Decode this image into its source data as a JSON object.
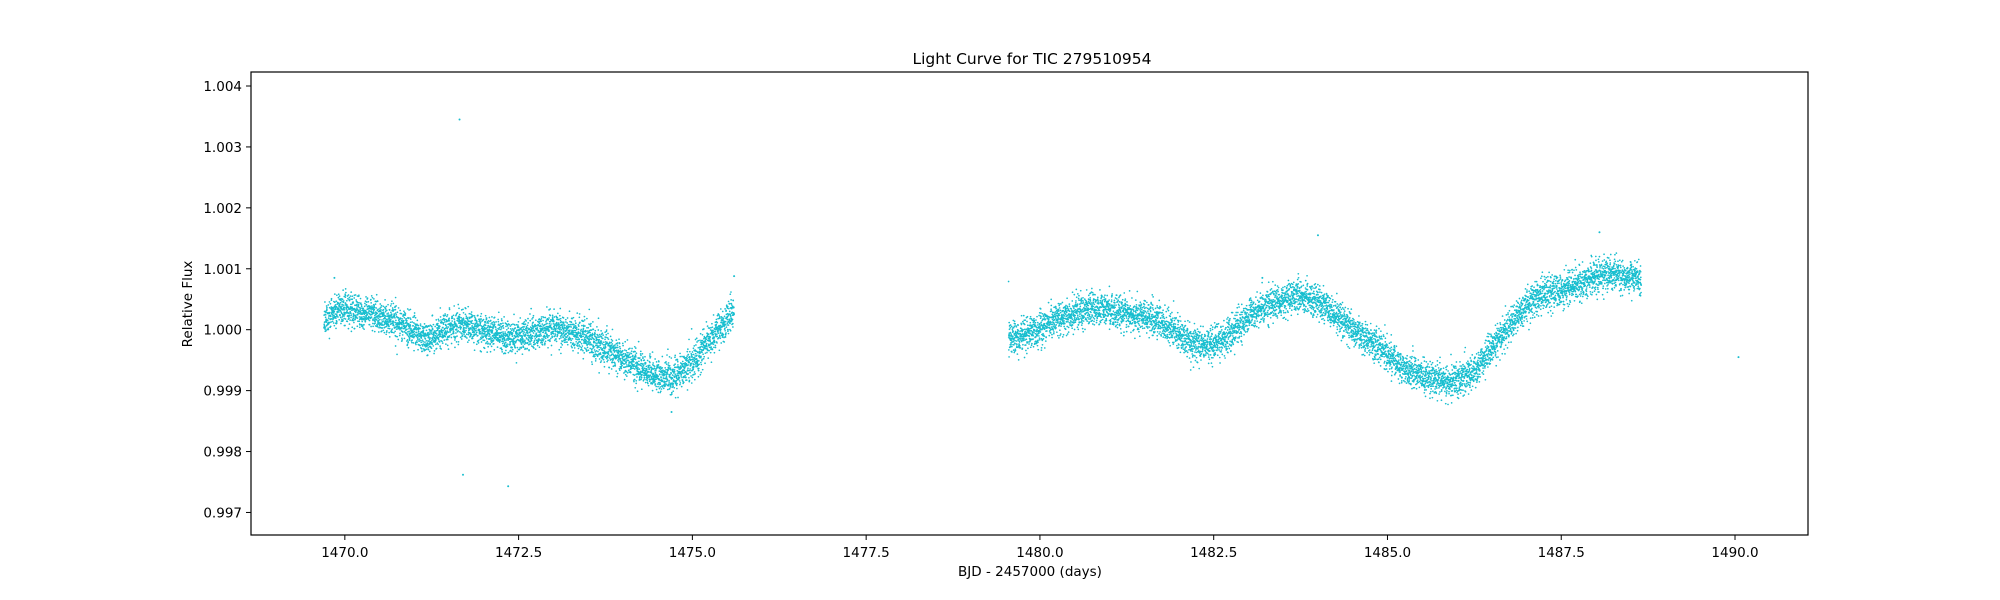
{
  "chart_data": {
    "type": "scatter",
    "title": "Light Curve for TIC 279510954",
    "xlabel": "BJD - 2457000 (days)",
    "ylabel": "Relative Flux",
    "xlim": [
      1468.65,
      1491.05
    ],
    "ylim": [
      0.99663,
      1.00423
    ],
    "xticks": [
      1470.0,
      1472.5,
      1475.0,
      1477.5,
      1480.0,
      1482.5,
      1485.0,
      1487.5,
      1490.0
    ],
    "xtick_labels": [
      "1470.0",
      "1472.5",
      "1475.0",
      "1477.5",
      "1480.0",
      "1482.5",
      "1485.0",
      "1487.5",
      "1490.0"
    ],
    "yticks": [
      0.997,
      0.998,
      0.999,
      1.0,
      1.001,
      1.002,
      1.003,
      1.004
    ],
    "ytick_labels": [
      "0.997",
      "0.998",
      "0.999",
      "1.000",
      "1.001",
      "1.002",
      "1.003",
      "1.004"
    ],
    "grid": false,
    "marker_color": "#17becf",
    "series": [
      {
        "segments": [
          {
            "x": [
              1469.7,
              1469.85,
              1470.0,
              1470.2,
              1470.4,
              1470.6,
              1470.8,
              1471.0,
              1471.15,
              1471.3,
              1471.5,
              1471.7,
              1471.9,
              1472.1,
              1472.3,
              1472.5,
              1472.7,
              1472.9,
              1473.1,
              1473.3,
              1473.5,
              1473.7,
              1473.9,
              1474.1,
              1474.3,
              1474.5,
              1474.7,
              1474.9,
              1475.1,
              1475.3,
              1475.45,
              1475.6
            ],
            "y": [
              1.00015,
              1.0003,
              1.00035,
              1.0003,
              1.00025,
              1.0002,
              1.0001,
              0.99995,
              0.99985,
              0.9999,
              1.00005,
              1.0001,
              1.00005,
              0.99995,
              0.9999,
              0.9999,
              0.99995,
              1.0,
              1.0,
              0.99995,
              0.99985,
              0.9997,
              0.9996,
              0.99945,
              0.99935,
              0.99925,
              0.9992,
              0.99935,
              0.9996,
              0.9999,
              1.0001,
              1.0003
            ]
          },
          {
            "x": [
              1479.55,
              1479.7,
              1479.9,
              1480.1,
              1480.3,
              1480.5,
              1480.7,
              1480.9,
              1481.1,
              1481.3,
              1481.5,
              1481.7,
              1481.9,
              1482.1,
              1482.3,
              1482.5,
              1482.7,
              1482.9,
              1483.1,
              1483.3,
              1483.5,
              1483.7,
              1483.9,
              1484.1,
              1484.3,
              1484.5,
              1484.7,
              1484.9,
              1485.1,
              1485.3,
              1485.5,
              1485.7,
              1485.9,
              1486.1,
              1486.3,
              1486.5,
              1486.7,
              1486.9,
              1487.1,
              1487.3,
              1487.5,
              1487.7,
              1487.9,
              1488.1,
              1488.3,
              1488.5,
              1488.65
            ],
            "y": [
              0.99985,
              0.9999,
              0.99995,
              1.0001,
              1.0002,
              1.00025,
              1.00035,
              1.00035,
              1.0003,
              1.00025,
              1.0002,
              1.00015,
              1.0,
              0.99985,
              0.99975,
              0.99975,
              0.9999,
              1.0001,
              1.0003,
              1.0004,
              1.0005,
              1.00055,
              1.0005,
              1.0004,
              1.0002,
              1.0,
              0.99985,
              0.9997,
              0.9995,
              0.99935,
              0.99925,
              0.9992,
              0.99915,
              0.9992,
              0.9994,
              0.9997,
              1.0,
              1.00025,
              1.0005,
              1.0006,
              1.00065,
              1.0007,
              1.00085,
              1.0009,
              1.0009,
              1.00085,
              1.0008
            ]
          }
        ],
        "outliers": {
          "x": [
            1471.65,
            1471.7,
            1472.35,
            1469.85,
            1474.7,
            1484.0,
            1487.25,
            1488.05,
            1490.05,
            1483.2,
            1475.6
          ],
          "y": [
            1.00345,
            0.99762,
            0.99743,
            1.00085,
            0.99865,
            1.00155,
            1.0007,
            1.0016,
            0.99955,
            1.00085,
            1.00088
          ]
        }
      }
    ]
  }
}
